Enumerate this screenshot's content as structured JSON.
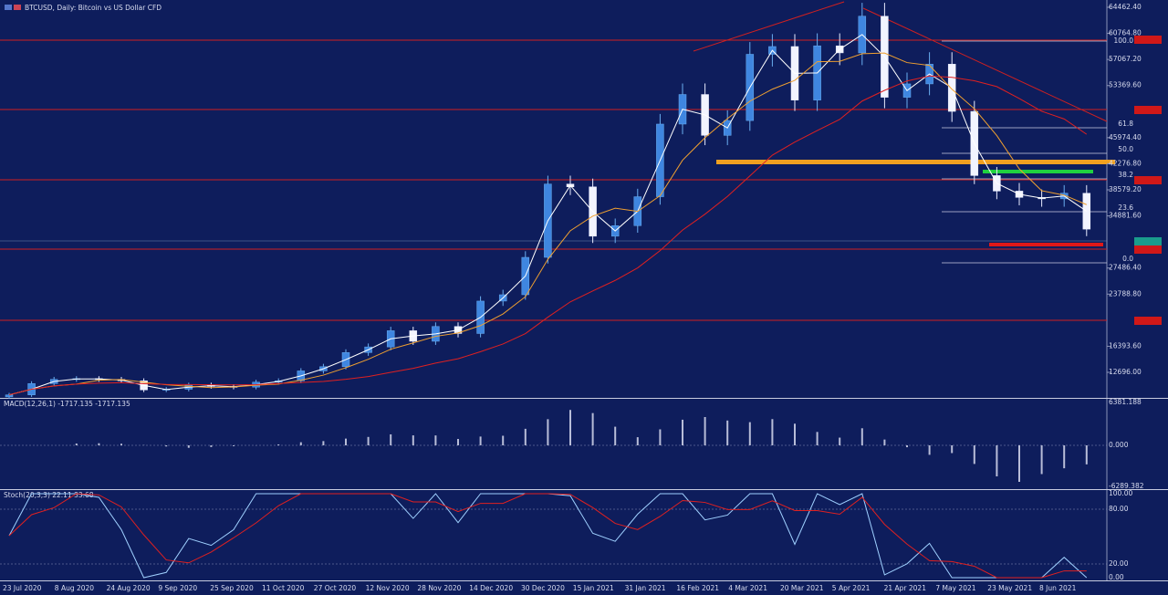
{
  "window": {
    "title": "BTCUSD, Daily:  Bitcoin vs US Dollar CFD"
  },
  "price": {
    "axis": [
      {
        "value": 64462.4,
        "label": "64462.40"
      },
      {
        "value": 60764.8,
        "label": "60764.80"
      },
      {
        "value": 57067.2,
        "label": "57067.20"
      },
      {
        "value": 53369.6,
        "label": "53369.60"
      },
      {
        "value": 45974.4,
        "label": "45974.40"
      },
      {
        "value": 42276.8,
        "label": "42276.80"
      },
      {
        "value": 38579.2,
        "label": "38579.20"
      },
      {
        "value": 34881.6,
        "label": "34881.60"
      },
      {
        "value": 27486.4,
        "label": "27486.40"
      },
      {
        "value": 23788.8,
        "label": "23788.80"
      },
      {
        "value": 16393.6,
        "label": "16393.60"
      },
      {
        "value": 12696.0,
        "label": "12696.00"
      }
    ],
    "closes": [
      9500,
      11100,
      11700,
      11800,
      11700,
      11500,
      10200,
      10300,
      10900,
      10700,
      10600,
      11300,
      11500,
      12900,
      13500,
      15500,
      16300,
      18600,
      17100,
      19200,
      18200,
      22800,
      23700,
      29000,
      39400,
      39000,
      32000,
      33500,
      37600,
      47900,
      52100,
      46300,
      48400,
      57800,
      58900,
      51300,
      59000,
      58000,
      63200,
      51700,
      53600,
      56400,
      49700,
      40600,
      38400,
      37500,
      37300,
      38100,
      33000
    ]
  },
  "fibonacci": [
    "100.0",
    "61.8",
    "50.0",
    "38.2",
    "23.6",
    "0.0"
  ],
  "dates": [
    "23 Jul 2020",
    "8 Aug 2020",
    "24 Aug 2020",
    "9 Sep 2020",
    "25 Sep 2020",
    "11 Oct 2020",
    "27 Oct 2020",
    "12 Nov 2020",
    "28 Nov 2020",
    "14 Dec 2020",
    "30 Dec 2020",
    "15 Jan 2021",
    "31 Jan 2021",
    "16 Feb 2021",
    "4 Mar 2021",
    "20 Mar 2021",
    "5 Apr 2021",
    "21 Apr 2021",
    "7 May 2021",
    "23 May 2021",
    "8 Jun 2021"
  ],
  "macd": {
    "label": "MACD(12,26,1) -1717.135 -1717.135",
    "axis": [
      "6381.188",
      "0.000",
      "-6289.382"
    ]
  },
  "stoch": {
    "label": "Stoch(20,3,3) 22.11 33.68",
    "axis": [
      "100.00",
      "80.00",
      "20.00",
      "0.00"
    ]
  }
}
